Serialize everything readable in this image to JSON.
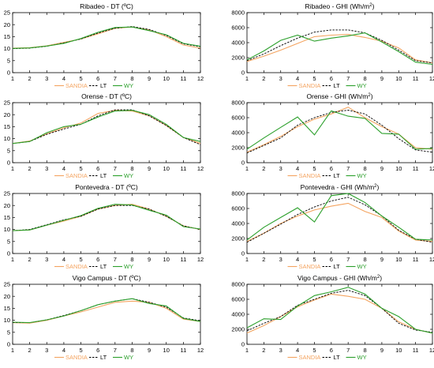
{
  "colors": {
    "sandia": "#f4a460",
    "lt": "#000000",
    "wy": "#2ca02c",
    "axis": "#000000"
  },
  "legend": {
    "sandia": "SANDIA",
    "lt": "LT",
    "wy": "WY"
  },
  "chart_data": [
    {
      "type": "line",
      "title_prefix": "Ribadeo",
      "title_var": "DT",
      "unit_text": "(ºC)",
      "unit_sup": "",
      "x": [
        1,
        2,
        3,
        4,
        5,
        6,
        7,
        8,
        9,
        10,
        11,
        12
      ],
      "ylim": [
        0,
        25
      ],
      "yticks": [
        0,
        5,
        10,
        15,
        20,
        25
      ],
      "xticks": [
        1,
        2,
        3,
        4,
        5,
        6,
        7,
        8,
        9,
        10,
        11,
        12
      ],
      "series": [
        {
          "name": "SANDIA",
          "values": [
            10.2,
            10.4,
            11.2,
            12.6,
            14.0,
            16.2,
            18.5,
            19.0,
            17.8,
            15.0,
            11.5,
            10.2
          ]
        },
        {
          "name": "LT",
          "values": [
            10.0,
            10.2,
            11.0,
            12.4,
            14.0,
            16.5,
            18.5,
            19.2,
            18.0,
            15.5,
            12.0,
            10.8
          ]
        },
        {
          "name": "WY",
          "values": [
            10.1,
            10.3,
            11.1,
            12.2,
            14.2,
            16.8,
            18.8,
            19.0,
            17.5,
            15.8,
            12.2,
            11.0
          ]
        }
      ]
    },
    {
      "type": "line",
      "title_prefix": "Ribadeo",
      "title_var": "GHI",
      "unit_text": "(Wh/m",
      "unit_sup": "2",
      "x": [
        1,
        2,
        3,
        4,
        5,
        6,
        7,
        8,
        9,
        10,
        11,
        12
      ],
      "ylim": [
        0,
        8000
      ],
      "yticks": [
        0,
        2000,
        4000,
        6000,
        8000
      ],
      "xticks": [
        1,
        2,
        3,
        4,
        5,
        6,
        7,
        8,
        9,
        10,
        11,
        12
      ],
      "series": [
        {
          "name": "SANDIA",
          "values": [
            1500,
            2200,
            3000,
            3900,
            4800,
            5000,
            5100,
            4700,
            4200,
            3300,
            1700,
            1300
          ]
        },
        {
          "name": "LT",
          "values": [
            1600,
            2500,
            3600,
            4600,
            5400,
            5700,
            5700,
            5300,
            4300,
            3000,
            1600,
            1300
          ]
        },
        {
          "name": "WY",
          "values": [
            1700,
            2900,
            4300,
            5000,
            4200,
            4600,
            4900,
            5300,
            4100,
            2800,
            1400,
            1100
          ]
        }
      ]
    },
    {
      "type": "line",
      "title_prefix": "Orense",
      "title_var": "DT",
      "unit_text": "(ºC)",
      "unit_sup": "",
      "x": [
        1,
        2,
        3,
        4,
        5,
        6,
        7,
        8,
        9,
        10,
        11,
        12
      ],
      "ylim": [
        0,
        25
      ],
      "yticks": [
        0,
        5,
        10,
        15,
        20,
        25
      ],
      "xticks": [
        1,
        2,
        3,
        4,
        5,
        6,
        7,
        8,
        9,
        10,
        11,
        12
      ],
      "series": [
        {
          "name": "SANDIA",
          "values": [
            8.0,
            9.0,
            12.0,
            14.5,
            16.5,
            20.5,
            21.8,
            21.5,
            19.5,
            15.5,
            10.5,
            8.0
          ]
        },
        {
          "name": "LT",
          "values": [
            8.0,
            8.8,
            11.8,
            14.0,
            16.0,
            19.5,
            22.0,
            22.0,
            19.5,
            15.5,
            10.5,
            7.5
          ]
        },
        {
          "name": "WY",
          "values": [
            8.0,
            8.8,
            12.5,
            15.0,
            16.0,
            19.0,
            21.5,
            21.8,
            20.0,
            16.0,
            10.5,
            8.8
          ]
        }
      ]
    },
    {
      "type": "line",
      "title_prefix": "Orense",
      "title_var": "GHI",
      "unit_text": "(Wh/m",
      "unit_sup": "2",
      "x": [
        1,
        2,
        3,
        4,
        5,
        6,
        7,
        8,
        9,
        10,
        11,
        12
      ],
      "ylim": [
        0,
        8000
      ],
      "yticks": [
        0,
        2000,
        4000,
        6000,
        8000
      ],
      "xticks": [
        1,
        2,
        3,
        4,
        5,
        6,
        7,
        8,
        9,
        10,
        11,
        12
      ],
      "series": [
        {
          "name": "SANDIA",
          "values": [
            1400,
            2400,
            3500,
            4800,
            5800,
            6500,
            7400,
            6000,
            4800,
            3800,
            2000,
            1800
          ]
        },
        {
          "name": "LT",
          "values": [
            1300,
            2300,
            3300,
            5000,
            6000,
            6700,
            7000,
            6500,
            5000,
            3200,
            1700,
            1400
          ]
        },
        {
          "name": "WY",
          "values": [
            1800,
            3300,
            4700,
            6100,
            3700,
            6900,
            6200,
            5900,
            3900,
            3800,
            1800,
            1900
          ]
        }
      ]
    },
    {
      "type": "line",
      "title_prefix": "Pontevedra",
      "title_var": "DT",
      "unit_text": "(ºC)",
      "unit_sup": "",
      "x": [
        1,
        2,
        3,
        4,
        5,
        6,
        7,
        8,
        9,
        10,
        11,
        12
      ],
      "ylim": [
        0,
        25
      ],
      "yticks": [
        0,
        5,
        10,
        15,
        20,
        25
      ],
      "xticks": [
        1,
        2,
        3,
        4,
        5,
        6,
        7,
        8,
        9,
        10,
        11,
        12
      ],
      "series": [
        {
          "name": "SANDIA",
          "values": [
            9.5,
            9.8,
            11.8,
            13.5,
            15.5,
            18.5,
            20.0,
            20.5,
            18.5,
            15.5,
            11.5,
            10.0
          ]
        },
        {
          "name": "LT",
          "values": [
            9.5,
            10.0,
            12.0,
            14.0,
            15.5,
            18.5,
            20.0,
            20.0,
            18.5,
            15.5,
            11.5,
            10.0
          ]
        },
        {
          "name": "WY",
          "values": [
            9.5,
            9.8,
            11.8,
            13.8,
            15.8,
            18.8,
            20.5,
            20.2,
            18.0,
            16.0,
            11.2,
            10.2
          ]
        }
      ]
    },
    {
      "type": "line",
      "title_prefix": "Pontevedra",
      "title_var": "GHI",
      "unit_text": "(Wh/m",
      "unit_sup": "2",
      "x": [
        1,
        2,
        3,
        4,
        5,
        6,
        7,
        8,
        9,
        10,
        11,
        12
      ],
      "ylim": [
        0,
        8000
      ],
      "yticks": [
        0,
        2000,
        4000,
        6000,
        8000
      ],
      "xticks": [
        1,
        2,
        3,
        4,
        5,
        6,
        7,
        8,
        9,
        10,
        11,
        12
      ],
      "series": [
        {
          "name": "SANDIA",
          "values": [
            1600,
            2700,
            4000,
            5000,
            5800,
            6300,
            6700,
            5600,
            4800,
            3000,
            1800,
            1600
          ]
        },
        {
          "name": "LT",
          "values": [
            1500,
            2700,
            3900,
            5200,
            6200,
            7000,
            7500,
            6500,
            5000,
            3100,
            1900,
            1500
          ]
        },
        {
          "name": "WY",
          "values": [
            1800,
            3500,
            4800,
            6100,
            4200,
            7700,
            8000,
            6800,
            5000,
            3500,
            1900,
            1800
          ]
        }
      ]
    },
    {
      "type": "line",
      "title_prefix": "Vigo Campus",
      "title_var": "DT",
      "unit_text": "(ºC)",
      "unit_sup": "",
      "x": [
        1,
        2,
        3,
        4,
        5,
        6,
        7,
        8,
        9,
        10,
        11,
        12
      ],
      "ylim": [
        0,
        25
      ],
      "yticks": [
        0,
        5,
        10,
        15,
        20,
        25
      ],
      "xticks": [
        1,
        2,
        3,
        4,
        5,
        6,
        7,
        8,
        9,
        10,
        11,
        12
      ],
      "series": [
        {
          "name": "SANDIA",
          "values": [
            9.0,
            8.8,
            10.0,
            11.8,
            13.5,
            15.5,
            17.5,
            18.0,
            17.5,
            15.0,
            10.5,
            9.5
          ]
        },
        {
          "name": "LT",
          "values": [
            9.0,
            9.0,
            10.2,
            12.0,
            14.0,
            16.5,
            18.0,
            19.0,
            17.5,
            15.5,
            11.0,
            9.8
          ]
        },
        {
          "name": "WY",
          "values": [
            9.2,
            9.0,
            10.2,
            11.8,
            14.0,
            16.5,
            18.0,
            19.0,
            17.0,
            16.0,
            10.8,
            9.5
          ]
        }
      ]
    },
    {
      "type": "line",
      "title_prefix": "Vigo Campus",
      "title_var": "GHI",
      "unit_text": "(Wh/m",
      "unit_sup": "2",
      "x": [
        1,
        2,
        3,
        4,
        5,
        6,
        7,
        8,
        9,
        10,
        11,
        12
      ],
      "ylim": [
        0,
        8000
      ],
      "yticks": [
        0,
        2000,
        4000,
        6000,
        8000
      ],
      "xticks": [
        1,
        2,
        3,
        4,
        5,
        6,
        7,
        8,
        9,
        10,
        11,
        12
      ],
      "series": [
        {
          "name": "SANDIA",
          "values": [
            1500,
            2500,
            3700,
            5000,
            5900,
            6700,
            6400,
            6000,
            4800,
            3000,
            2000,
            1500
          ]
        },
        {
          "name": "LT",
          "values": [
            1800,
            2800,
            3700,
            5200,
            6000,
            6800,
            7200,
            6500,
            4800,
            2800,
            1900,
            1600
          ]
        },
        {
          "name": "WY",
          "values": [
            2200,
            3400,
            3300,
            5100,
            6500,
            7000,
            7600,
            6700,
            4800,
            3700,
            2000,
            1500
          ]
        }
      ]
    }
  ]
}
